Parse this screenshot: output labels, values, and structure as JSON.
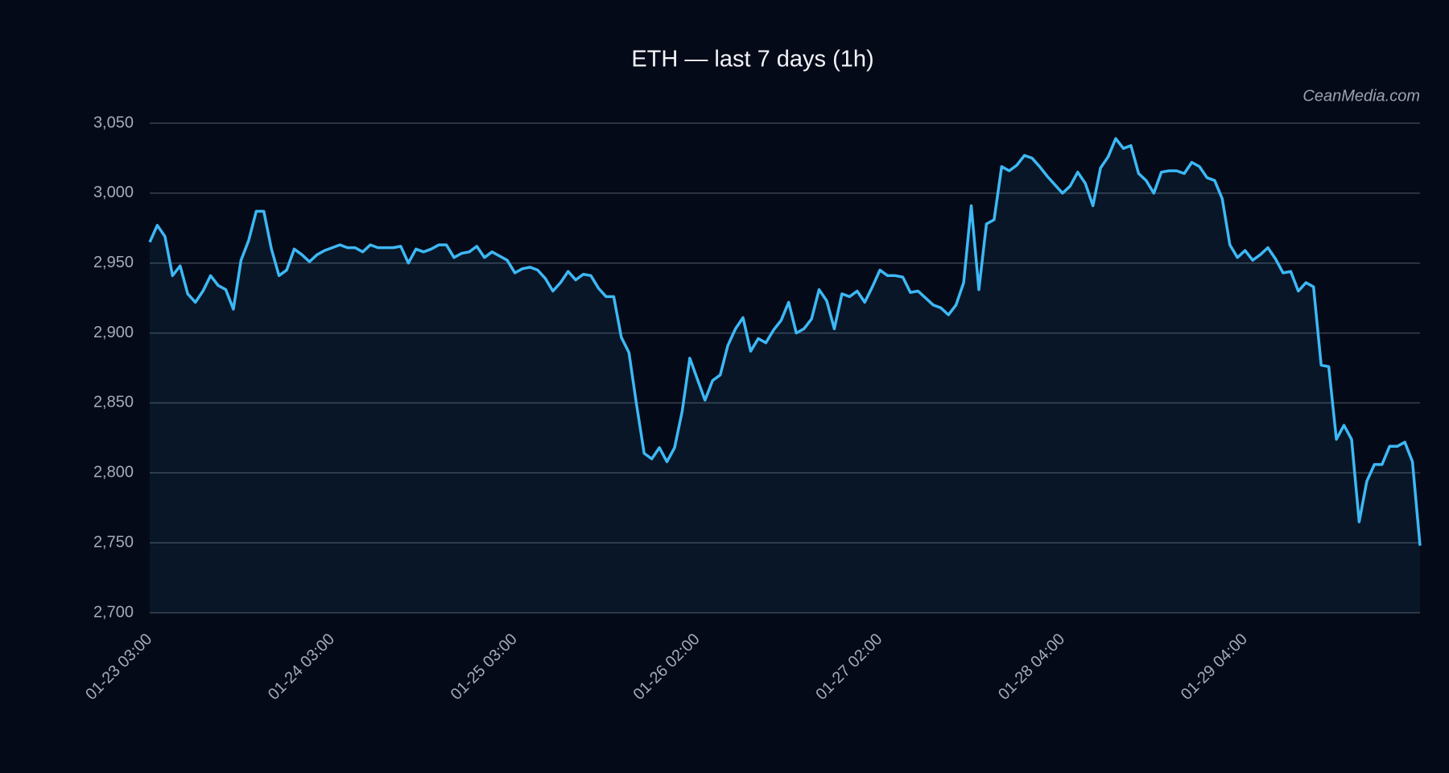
{
  "chart_data": {
    "type": "line",
    "title": "ETH — last 7 days (1h)",
    "watermark": "CeanMedia.com",
    "categories": [
      "01-23 03:00",
      null,
      null,
      null,
      null,
      null,
      null,
      null,
      null,
      null,
      null,
      null,
      null,
      null,
      null,
      null,
      null,
      null,
      null,
      null,
      null,
      null,
      null,
      null,
      "01-24 03:00",
      null,
      null,
      null,
      null,
      null,
      null,
      null,
      null,
      null,
      null,
      null,
      null,
      null,
      null,
      null,
      null,
      null,
      null,
      null,
      null,
      null,
      null,
      null,
      "01-25 03:00",
      null,
      null,
      null,
      null,
      null,
      null,
      null,
      null,
      null,
      null,
      null,
      null,
      null,
      null,
      null,
      null,
      null,
      null,
      null,
      null,
      null,
      null,
      null,
      "01-26 02:00",
      null,
      null,
      null,
      null,
      null,
      null,
      null,
      null,
      null,
      null,
      null,
      null,
      null,
      null,
      null,
      null,
      null,
      null,
      null,
      null,
      null,
      null,
      null,
      "01-27 02:00",
      null,
      null,
      null,
      null,
      null,
      null,
      null,
      null,
      null,
      null,
      null,
      null,
      null,
      null,
      null,
      null,
      null,
      null,
      null,
      null,
      null,
      null,
      null,
      "01-28 04:00",
      null,
      null,
      null,
      null,
      null,
      null,
      null,
      null,
      null,
      null,
      null,
      null,
      null,
      null,
      null,
      null,
      null,
      null,
      null,
      null,
      null,
      null,
      null,
      "01-29 04:00",
      null,
      null,
      null,
      null,
      null,
      null,
      null,
      null,
      null,
      null,
      null,
      null,
      null,
      null,
      null,
      null,
      null,
      null,
      null,
      null,
      null,
      null,
      null
    ],
    "series": [
      {
        "name": "ETH",
        "color": "#3db8f5",
        "values": [
          2965,
          2977,
          2969,
          2941,
          2948,
          2928,
          2922,
          2930,
          2941,
          2934,
          2931,
          2917,
          2952,
          2966,
          2987,
          2987,
          2960,
          2941,
          2945,
          2960,
          2956,
          2951,
          2956,
          2959,
          2961,
          2963,
          2961,
          2961,
          2958,
          2963,
          2961,
          2961,
          2961,
          2962,
          2950,
          2960,
          2958,
          2960,
          2963,
          2963,
          2954,
          2957,
          2958,
          2962,
          2954,
          2958,
          2955,
          2952,
          2943,
          2946,
          2947,
          2945,
          2939,
          2930,
          2936,
          2944,
          2938,
          2942,
          2941,
          2932,
          2926,
          2926,
          2897,
          2886,
          2849,
          2814,
          2810,
          2818,
          2808,
          2818,
          2844,
          2882,
          2867,
          2852,
          2866,
          2870,
          2891,
          2903,
          2911,
          2887,
          2896,
          2893,
          2902,
          2909,
          2922,
          2900,
          2903,
          2910,
          2931,
          2923,
          2903,
          2928,
          2926,
          2930,
          2922,
          2933,
          2945,
          2941,
          2941,
          2940,
          2929,
          2930,
          2925,
          2920,
          2918,
          2913,
          2920,
          2936,
          2991,
          2931,
          2978,
          2981,
          3019,
          3016,
          3020,
          3027,
          3025,
          3019,
          3012,
          3006,
          3000,
          3005,
          3015,
          3007,
          2991,
          3018,
          3026,
          3039,
          3032,
          3034,
          3014,
          3009,
          3000,
          3015,
          3016,
          3016,
          3014,
          3022,
          3019,
          3011,
          3009,
          2996,
          2963,
          2954,
          2959,
          2952,
          2956,
          2961,
          2953,
          2943,
          2944,
          2930,
          2936,
          2933,
          2877,
          2876,
          2824,
          2834,
          2824,
          2765,
          2794,
          2806,
          2806,
          2819,
          2819,
          2822,
          2808,
          2748
        ]
      }
    ],
    "ylim": [
      2700,
      3050
    ],
    "yticks": [
      {
        "value": 2700,
        "label": "2,700"
      },
      {
        "value": 2750,
        "label": "2,750"
      },
      {
        "value": 2800,
        "label": "2,800"
      },
      {
        "value": 2850,
        "label": "2,850"
      },
      {
        "value": 2900,
        "label": "2,900"
      },
      {
        "value": 2950,
        "label": "2,950"
      },
      {
        "value": 3000,
        "label": "3,000"
      },
      {
        "value": 3050,
        "label": "3,050"
      }
    ],
    "grid": true
  }
}
